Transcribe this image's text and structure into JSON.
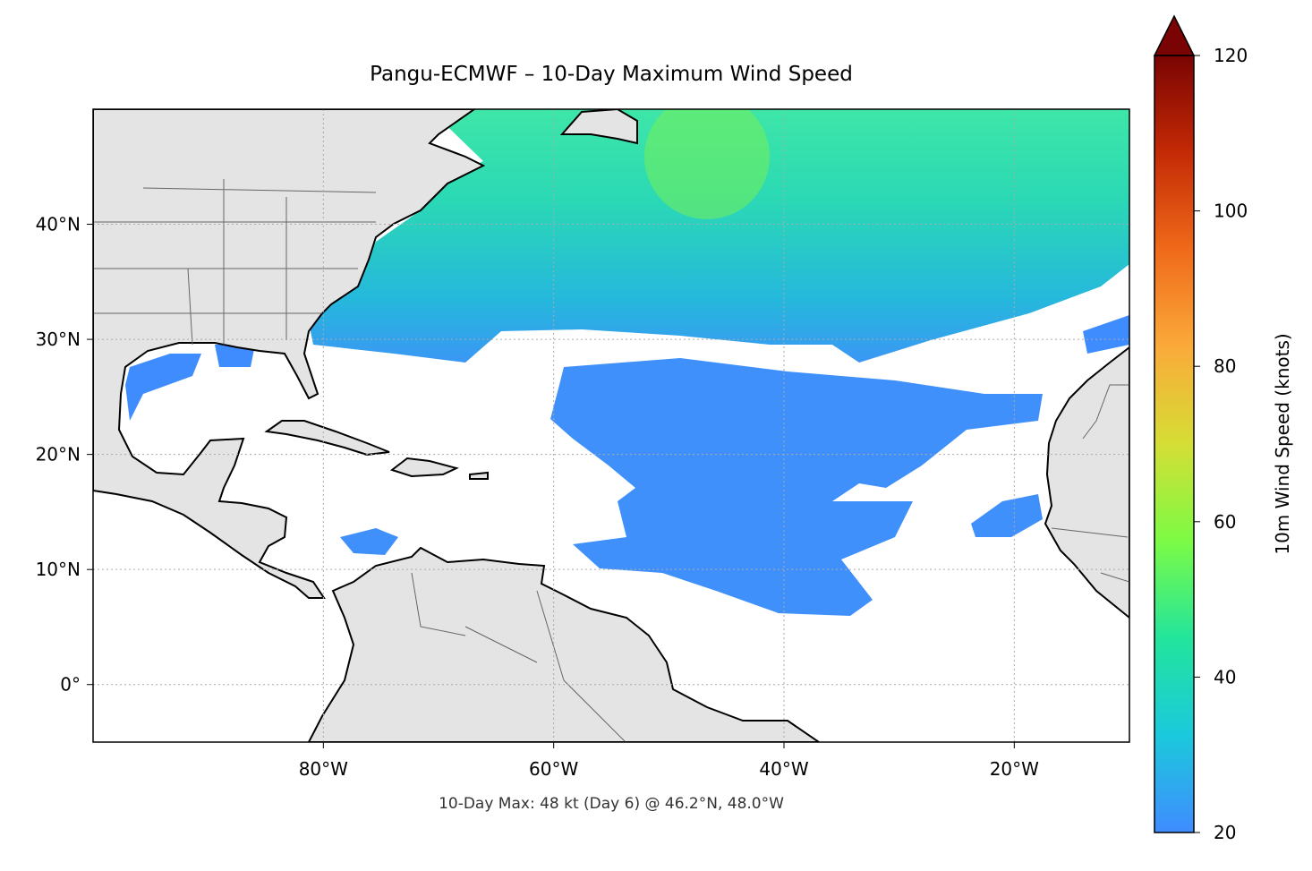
{
  "chart_data": {
    "type": "map",
    "title": "Pangu-ECMWF – 10-Day Maximum Wind Speed",
    "footnote": "10-Day Max: 48 kt (Day 6) @ 46.2°N, 48.0°W",
    "xlim": [
      -100,
      -10
    ],
    "ylim": [
      -5,
      50
    ],
    "xticks": [
      {
        "value": -80,
        "label": "80°W"
      },
      {
        "value": -60,
        "label": "60°W"
      },
      {
        "value": -40,
        "label": "40°W"
      },
      {
        "value": -20,
        "label": "20°W"
      }
    ],
    "yticks": [
      {
        "value": 0,
        "label": "0°"
      },
      {
        "value": 10,
        "label": "10°N"
      },
      {
        "value": 20,
        "label": "20°N"
      },
      {
        "value": 30,
        "label": "30°N"
      },
      {
        "value": 40,
        "label": "40°N"
      }
    ],
    "grid": true,
    "colorbar": {
      "label": "10m Wind Speed (knots)",
      "lim": [
        20,
        120
      ],
      "ticks": [
        20,
        40,
        60,
        80,
        100,
        120
      ],
      "extend": "max",
      "colormap": [
        "#3f8cff",
        "#1bc9dc",
        "#22e59c",
        "#7cfb45",
        "#d5de35",
        "#fbaa3a",
        "#f06a1a",
        "#c42a05",
        "#7a0403"
      ]
    }
  }
}
